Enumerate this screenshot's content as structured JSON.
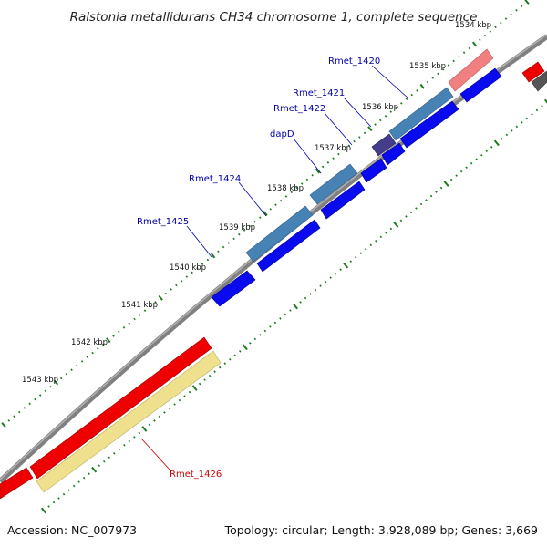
{
  "title": "Ralstonia metallidurans CH34 chromosome 1, complete sequence",
  "accession": "Accession: NC_007973",
  "summary": "Topology: circular; Length: 3,928,089 bp; Genes: 3,669",
  "colors": {
    "backbone": "#808080",
    "blue": "#0a0aee",
    "steel": "#4682b4",
    "indigo": "#433d8b",
    "red": "#ee0000",
    "pink": "#f08080",
    "khaki": "#eee08c",
    "dark_gray": "#555555",
    "tick_green": "#1b7a1b",
    "label_blue": "#0000aa",
    "label_red": "#cc0000"
  },
  "kbp_labels": [
    "1534 kbp",
    "1535 kbp",
    "1536 kbp",
    "1537 kbp",
    "1538 kbp",
    "1539 kbp",
    "1540 kbp",
    "1541 kbp",
    "1542 kbp",
    "1543 kbp"
  ],
  "gene_labels": [
    {
      "name": "Rmet_1420",
      "color": "label_blue"
    },
    {
      "name": "Rmet_1421",
      "color": "label_blue"
    },
    {
      "name": "Rmet_1422",
      "color": "label_blue"
    },
    {
      "name": "dapD",
      "color": "label_blue"
    },
    {
      "name": "Rmet_1424",
      "color": "label_blue"
    },
    {
      "name": "Rmet_1425",
      "color": "label_blue"
    },
    {
      "name": "Rmet_1426",
      "color": "label_red"
    }
  ]
}
